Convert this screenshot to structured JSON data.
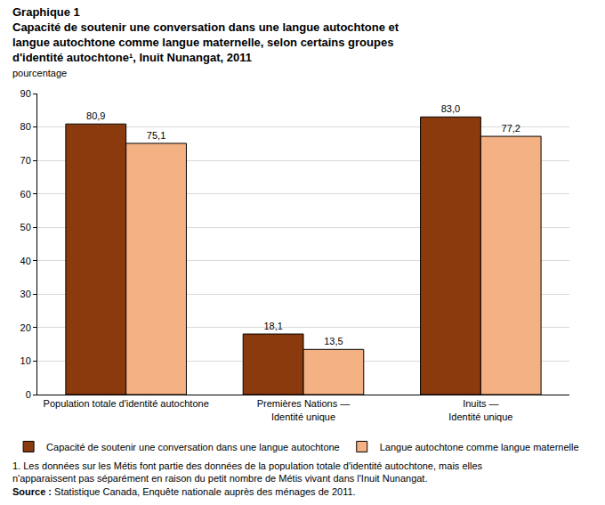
{
  "chart_data": {
    "type": "bar",
    "title": "Graphique 1",
    "subtitle": "Capacité de soutenir une conversation dans une langue autochtone et langue autochtone comme langue maternelle, selon certains groupes d'identité autochtone¹, Inuit Nunangat, 2011",
    "y_label": "pourcentage",
    "categories": [
      "Population totale d'identité autochtone",
      "Premières Nations — Identité unique",
      "Inuits — Identité unique"
    ],
    "series": [
      {
        "name": "Capacité de soutenir une conversation dans une langue autochtone",
        "color": "#8B3A0E",
        "values": [
          80.9,
          18.1,
          83.0
        ],
        "value_labels": [
          "80,9",
          "18,1",
          "83,0"
        ]
      },
      {
        "name": "Langue autochtone comme langue maternelle",
        "color": "#F4B183",
        "values": [
          75.1,
          13.5,
          77.2
        ],
        "value_labels": [
          "75,1",
          "13,5",
          "77,2"
        ]
      }
    ],
    "ylim": [
      0,
      90
    ],
    "yticks": [
      0,
      10,
      20,
      30,
      40,
      50,
      60,
      70,
      80,
      90
    ],
    "grid": true,
    "legend": "bottom",
    "data_labels": true,
    "footnote": "1. Les données sur les Métis font partie des données de la population totale d'identité autochtone, mais elles n'apparaissent pas séparément en raison du petit nombre de Métis vivant dans l'Inuit Nunangat.",
    "source": "Source : Statistique Canada, Enquête nationale auprès des ménages de 2011."
  }
}
